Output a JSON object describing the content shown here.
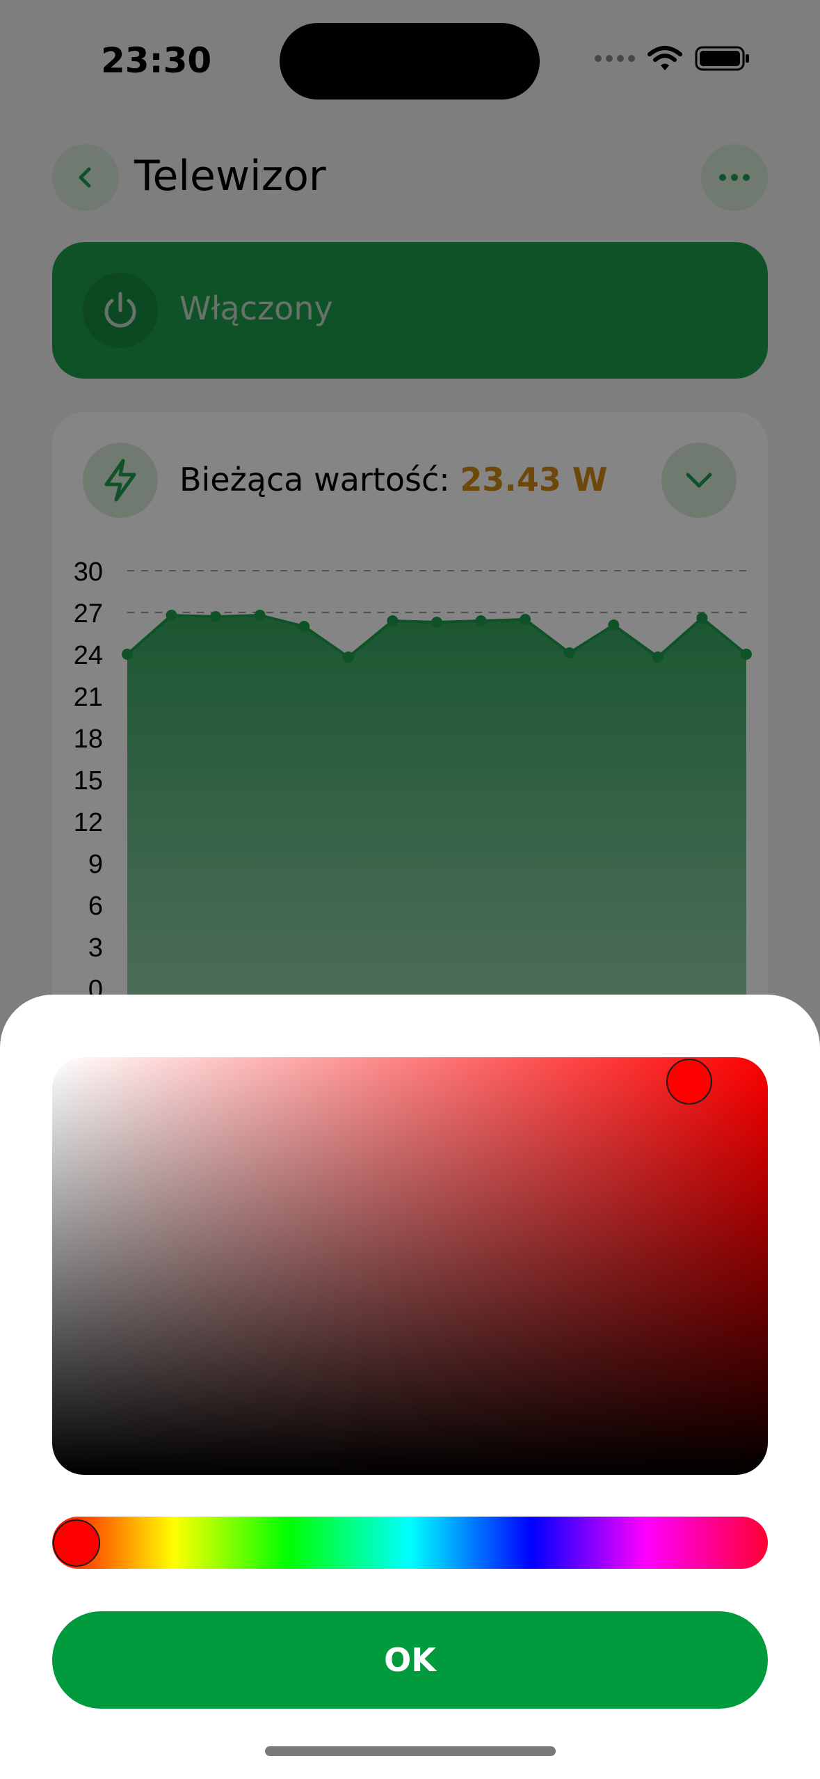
{
  "status_bar": {
    "time": "23:30"
  },
  "header": {
    "title": "Telewizor"
  },
  "power": {
    "label": "Włączony"
  },
  "current": {
    "label": "Bieżąca wartość:",
    "value": "23.43 W"
  },
  "chart_data": {
    "type": "area",
    "y_ticks": [
      "30",
      "27",
      "24",
      "21",
      "18",
      "15",
      "12",
      "9",
      "6",
      "3",
      "0"
    ],
    "ylim": [
      0,
      30
    ],
    "grid": "dashed horizontal at 27 and 30",
    "values": [
      24.0,
      26.8,
      26.7,
      26.8,
      26.0,
      23.8,
      26.4,
      26.3,
      26.4,
      26.5,
      24.1,
      26.1,
      23.8,
      26.6,
      24.0
    ],
    "color": "#1f9d4d"
  },
  "picker": {
    "selected_color": "#ff0000",
    "hue": "red",
    "ok_label": "OK"
  },
  "colors": {
    "accent": "#019a3c",
    "value": "#d18a14"
  }
}
